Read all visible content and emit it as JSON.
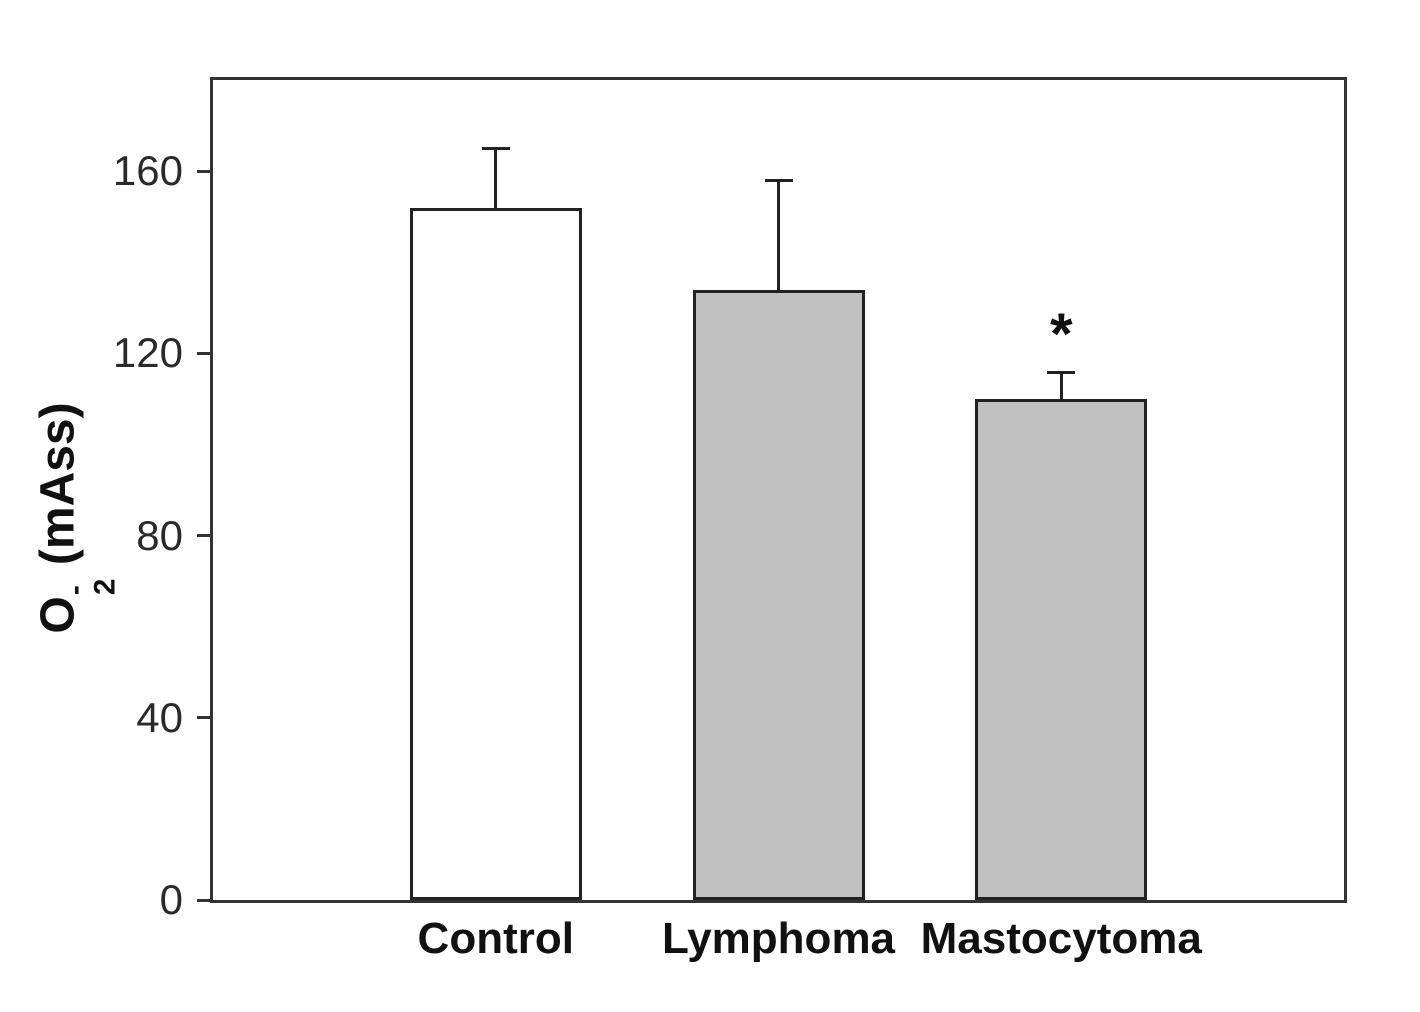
{
  "chart_data": {
    "type": "bar",
    "title": "",
    "categories": [
      "Control",
      "Lymphoma",
      "Mastocytoma"
    ],
    "values": [
      152,
      134,
      110
    ],
    "errors": [
      13,
      24,
      6
    ],
    "error_direction": "upper-only",
    "bar_fills": [
      "#ffffff",
      "#c1c1c1",
      "#c1c1c1"
    ],
    "bar_border_color": "#222222",
    "frame_color": "#333333",
    "ylabel": "O2- (mAss)",
    "ylabel_parts": {
      "element": "O",
      "subscript": "2",
      "superscript": "-",
      "unit": "(mAss)"
    },
    "xlabel": "",
    "yticks": [
      0,
      40,
      80,
      120,
      160
    ],
    "ylim": [
      0,
      180
    ],
    "grid": false,
    "legend": "none",
    "annotations": [
      {
        "category": "Mastocytoma",
        "text": "*",
        "meaning": "significance-marker"
      }
    ]
  }
}
